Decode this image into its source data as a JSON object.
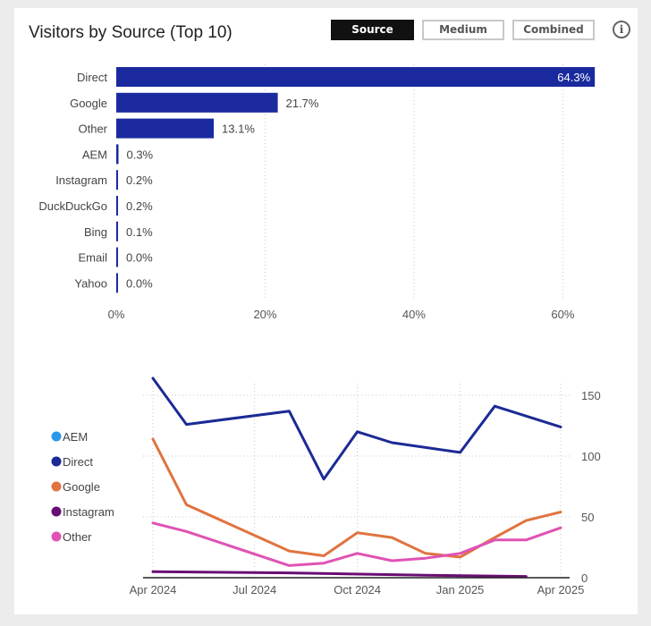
{
  "title": "Visitors by Source (Top 10)",
  "toggle": {
    "options": [
      "Source",
      "Medium",
      "Combined"
    ],
    "selected": "Source"
  },
  "info_icon": "info-circle-icon",
  "colors": {
    "bar": "#1a2a9e",
    "Direct": "#1b2a95",
    "Google": "#e0733f",
    "Other": "#e052b4",
    "Instagram": "#6a0d73",
    "AEM": "#2899e8"
  },
  "chart_data": [
    {
      "type": "bar",
      "orientation": "horizontal",
      "categories": [
        "Direct",
        "Google",
        "Other",
        "AEM",
        "Instagram",
        "DuckDuckGo",
        "Bing",
        "Email",
        "Yahoo"
      ],
      "values": [
        64.3,
        21.7,
        13.1,
        0.3,
        0.2,
        0.2,
        0.1,
        0.0,
        0.0
      ],
      "data_labels": [
        "64.3%",
        "21.7%",
        "13.1%",
        "0.3%",
        "0.2%",
        "0.2%",
        "0.1%",
        "0.0%",
        "0.0%"
      ],
      "x_ticks": [
        "0%",
        "20%",
        "40%",
        "60%"
      ],
      "xlim": [
        0,
        65
      ],
      "grid": "vertical-dotted"
    },
    {
      "type": "line",
      "x_ticks": [
        "Apr 2024",
        "Jul 2024",
        "Oct 2024",
        "Jan 2025",
        "Apr 2025"
      ],
      "y_ticks": [
        "0",
        "50",
        "100",
        "150"
      ],
      "ylim": [
        0,
        165
      ],
      "y_axis_side": "right",
      "legend_position": "left",
      "legend": [
        "AEM",
        "Direct",
        "Google",
        "Instagram",
        "Other"
      ],
      "series": [
        {
          "name": "Direct",
          "points": [
            [
              "2024-04-01",
              164
            ],
            [
              "2024-05-01",
              126
            ],
            [
              "2024-08-01",
              137
            ],
            [
              "2024-09-01",
              81
            ],
            [
              "2024-10-01",
              120
            ],
            [
              "2024-11-01",
              111
            ],
            [
              "2025-01-01",
              103
            ],
            [
              "2025-02-01",
              141
            ],
            [
              "2025-04-01",
              124
            ]
          ]
        },
        {
          "name": "Google",
          "points": [
            [
              "2024-04-01",
              114
            ],
            [
              "2024-05-01",
              60
            ],
            [
              "2024-08-01",
              22
            ],
            [
              "2024-09-01",
              18
            ],
            [
              "2024-10-01",
              37
            ],
            [
              "2024-11-01",
              33
            ],
            [
              "2024-12-01",
              20
            ],
            [
              "2025-01-01",
              17
            ],
            [
              "2025-02-01",
              33
            ],
            [
              "2025-03-01",
              47
            ],
            [
              "2025-04-01",
              54
            ]
          ]
        },
        {
          "name": "Other",
          "points": [
            [
              "2024-04-01",
              45
            ],
            [
              "2024-05-01",
              38
            ],
            [
              "2024-08-01",
              10
            ],
            [
              "2024-09-01",
              12
            ],
            [
              "2024-10-01",
              20
            ],
            [
              "2024-11-01",
              14
            ],
            [
              "2024-12-01",
              16
            ],
            [
              "2025-01-01",
              20
            ],
            [
              "2025-02-01",
              31
            ],
            [
              "2025-03-01",
              31
            ],
            [
              "2025-04-01",
              41
            ]
          ]
        },
        {
          "name": "Instagram",
          "points": [
            [
              "2024-04-01",
              5
            ],
            [
              "2024-08-01",
              4
            ],
            [
              "2024-12-01",
              2
            ],
            [
              "2025-03-01",
              1
            ]
          ]
        }
      ]
    }
  ]
}
